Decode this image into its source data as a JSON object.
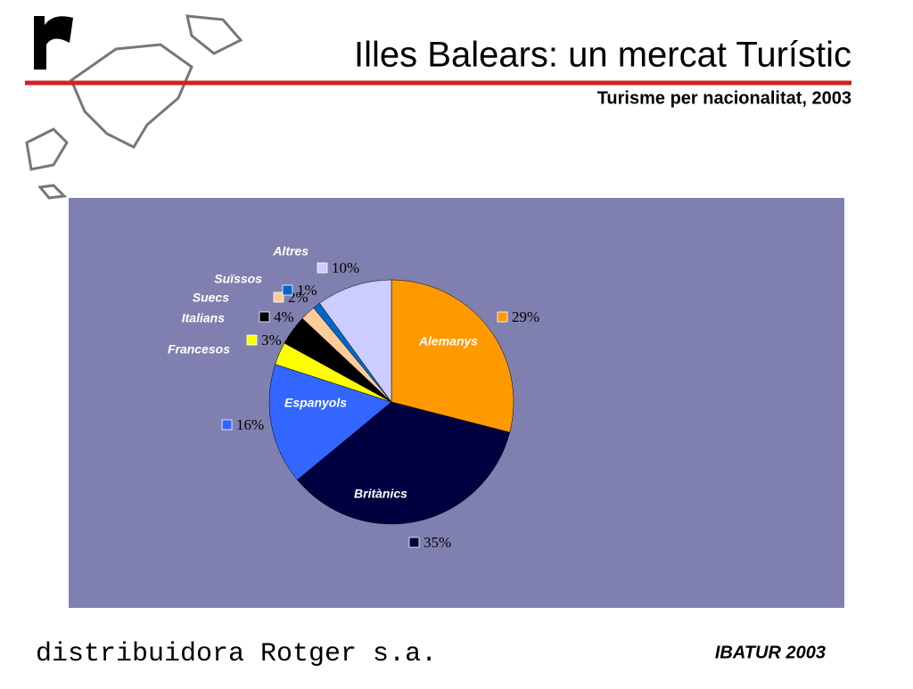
{
  "chart_data": {
    "type": "pie",
    "title": "Illes Balears: un mercat Turístic",
    "subtitle": "Turisme per nacionalitat, 2003",
    "categories": [
      "Alemanys",
      "Britànics",
      "Espanyols",
      "Francesos",
      "Italians",
      "Suecs",
      "Suïssos",
      "Altres"
    ],
    "values": [
      29,
      35,
      16,
      3,
      4,
      2,
      1,
      10
    ],
    "value_labels": [
      "29%",
      "35%",
      "16%",
      "3%",
      "4%",
      "2%",
      "1%",
      "10%"
    ],
    "colors": [
      "#ff9900",
      "#000040",
      "#3366ff",
      "#ffff00",
      "#000000",
      "#ffcc99",
      "#0066cc",
      "#ccccff"
    ]
  },
  "footer": {
    "company": "distribuidora Rotger s.a.",
    "source": "IBATUR 2003"
  }
}
